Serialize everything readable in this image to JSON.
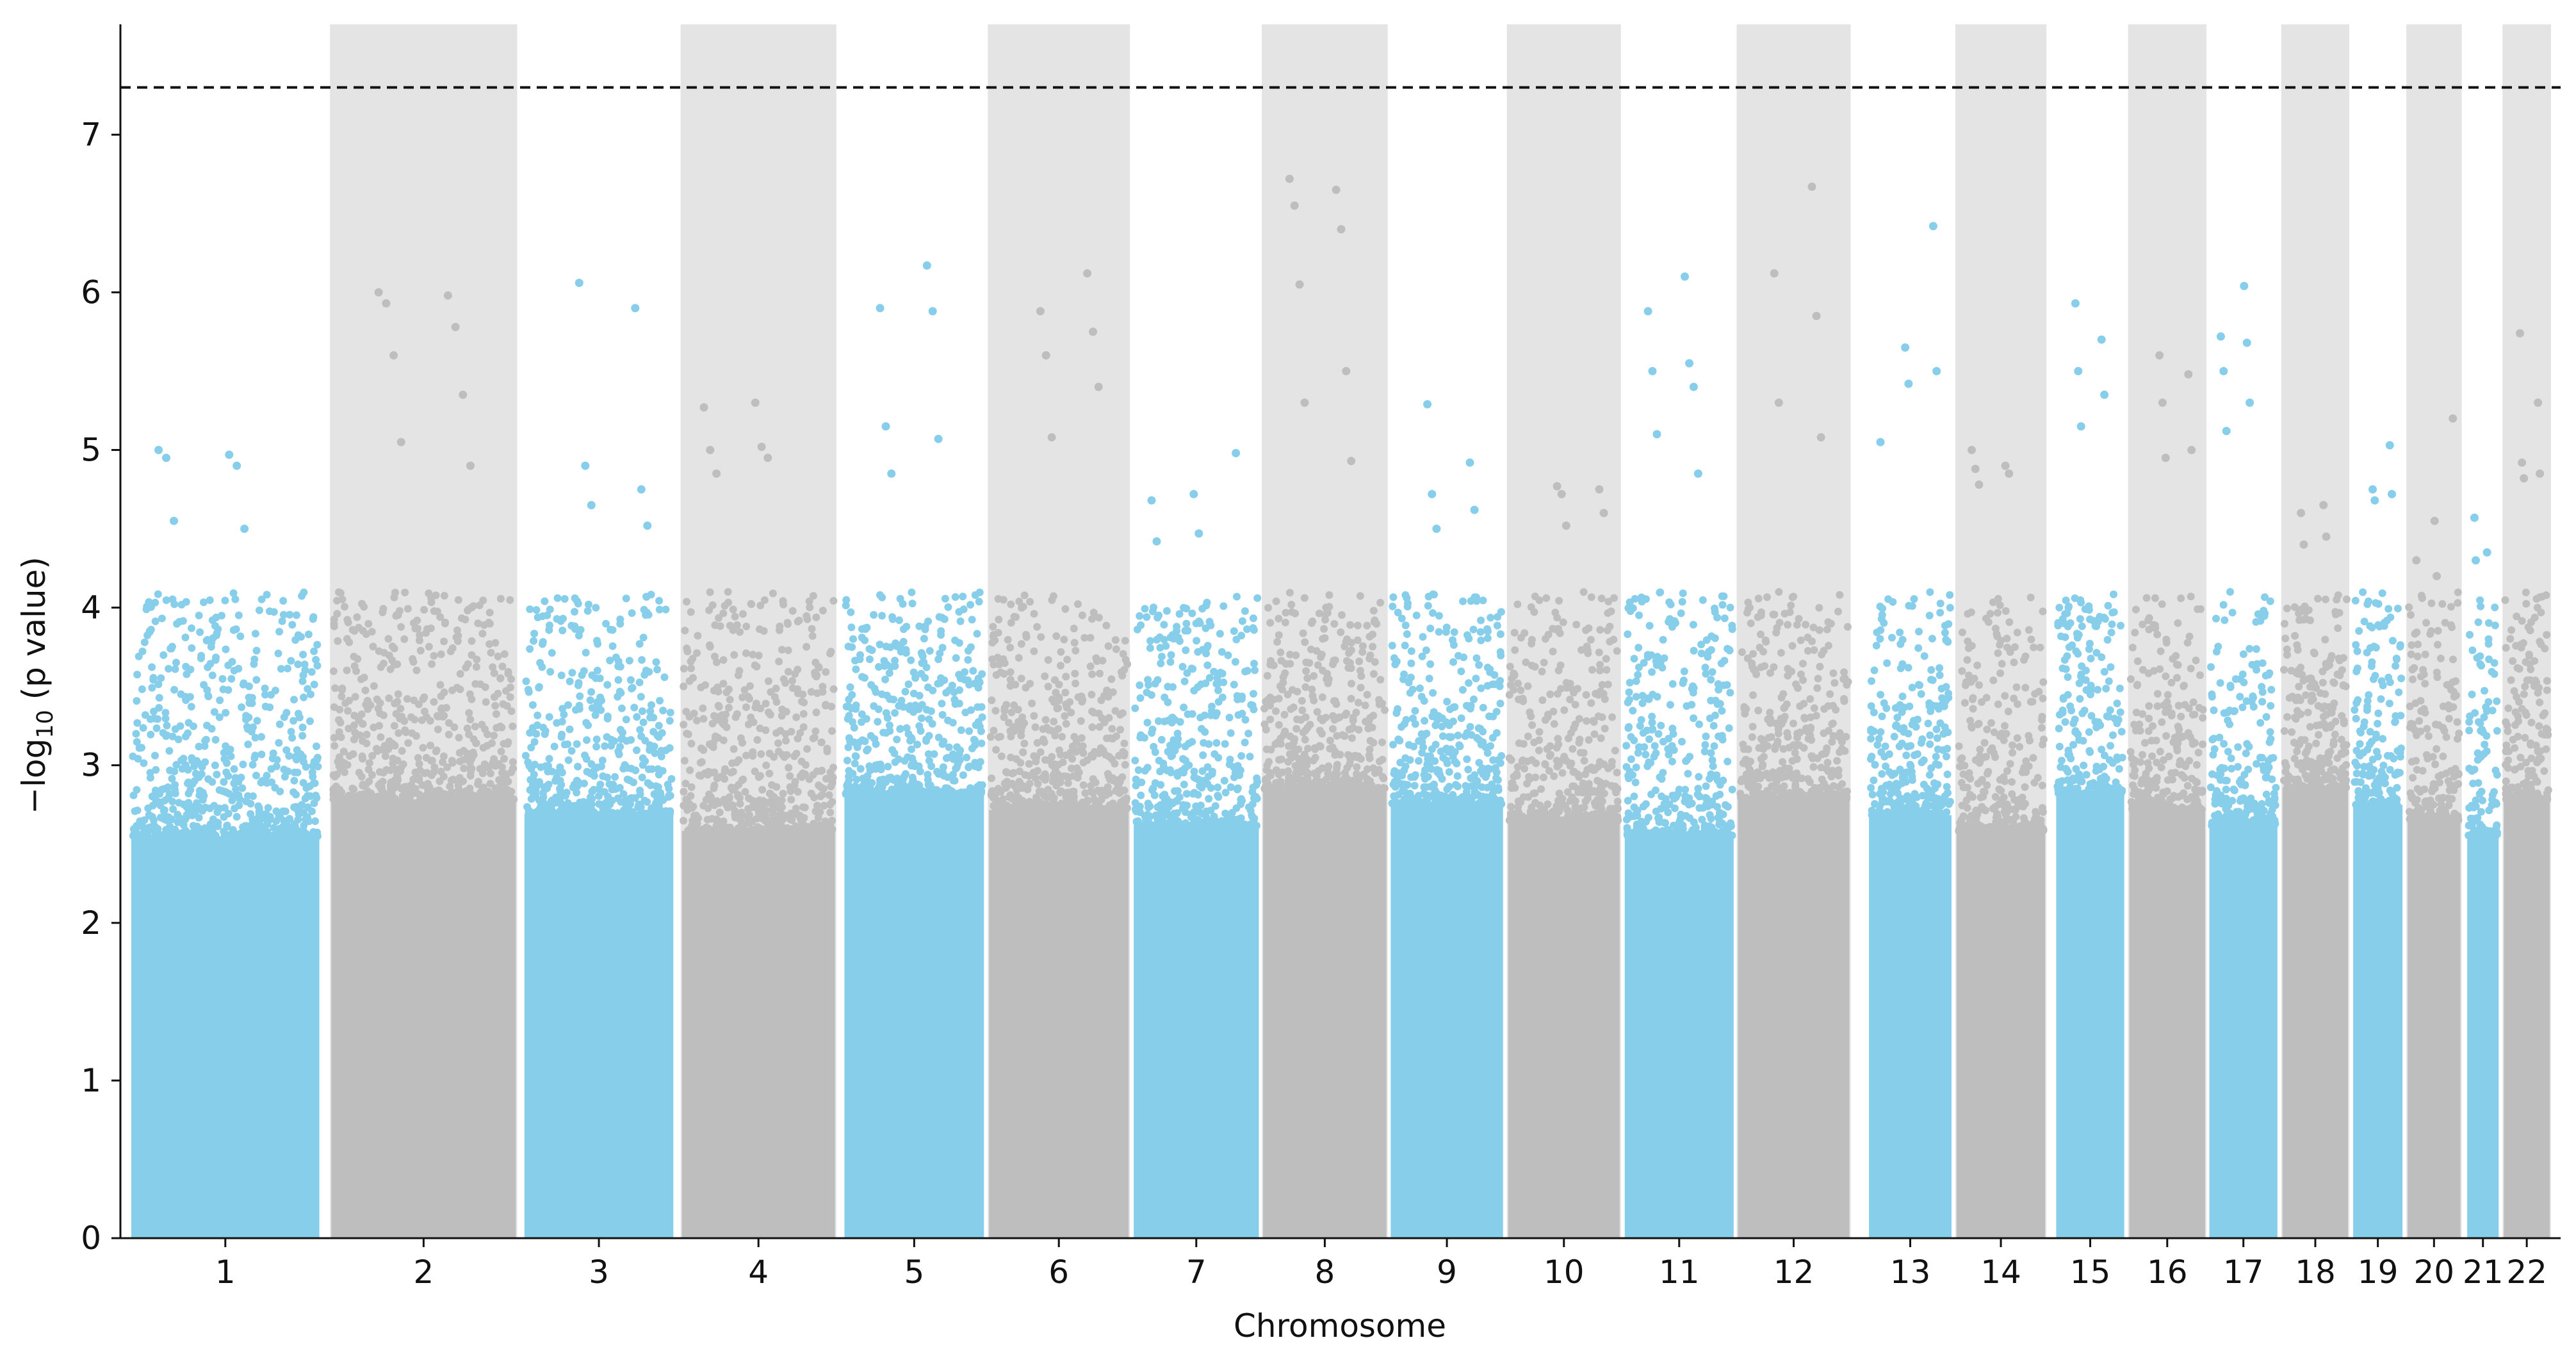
{
  "chart_data": {
    "type": "scatter",
    "subtype": "manhattan",
    "title": "",
    "xlabel": "Chromosome",
    "ylabel": {
      "prefix": "−log",
      "subscript": "10",
      "suffix": " (p value)"
    },
    "ylim": [
      0,
      7.7
    ],
    "yticks": [
      0,
      1,
      2,
      3,
      4,
      5,
      6,
      7
    ],
    "threshold": {
      "value": 7.3,
      "style": "dashed",
      "color": "#111111"
    },
    "grid": false,
    "legend": "none",
    "colors": {
      "odd_chrom": "#87CEEB",
      "even_chrom": "#BEBEBE",
      "even_band": "#E4E4E4"
    },
    "chromosomes": [
      {
        "label": "1",
        "start": 0,
        "end": 224,
        "max": 5.0,
        "top_hits": [
          5.0,
          4.97,
          4.95,
          4.9,
          4.55,
          4.5
        ]
      },
      {
        "label": "2",
        "start": 235,
        "end": 455,
        "max": 6.0,
        "top_hits": [
          6.0,
          5.98,
          5.93,
          5.78,
          5.6,
          5.35,
          5.05,
          4.9
        ]
      },
      {
        "label": "3",
        "start": 462,
        "end": 640,
        "max": 6.06,
        "top_hits": [
          6.06,
          5.9,
          4.9,
          4.75,
          4.65,
          4.52
        ]
      },
      {
        "label": "4",
        "start": 647,
        "end": 830,
        "max": 5.3,
        "top_hits": [
          5.3,
          5.27,
          5.02,
          5.0,
          4.95,
          4.85
        ]
      },
      {
        "label": "5",
        "start": 838,
        "end": 1005,
        "max": 6.17,
        "top_hits": [
          6.17,
          5.9,
          5.88,
          5.15,
          5.07,
          4.85
        ]
      },
      {
        "label": "6",
        "start": 1008,
        "end": 1175,
        "max": 6.12,
        "top_hits": [
          6.12,
          5.88,
          5.75,
          5.6,
          5.4,
          5.08
        ]
      },
      {
        "label": "7",
        "start": 1178,
        "end": 1328,
        "max": 4.98,
        "top_hits": [
          4.98,
          4.72,
          4.68,
          4.47,
          4.42
        ]
      },
      {
        "label": "8",
        "start": 1330,
        "end": 1478,
        "max": 6.72,
        "top_hits": [
          6.72,
          6.65,
          6.55,
          6.4,
          6.05,
          5.5,
          5.3,
          4.93
        ]
      },
      {
        "label": "9",
        "start": 1480,
        "end": 1615,
        "max": 5.29,
        "top_hits": [
          5.29,
          4.92,
          4.72,
          4.62,
          4.5
        ]
      },
      {
        "label": "10",
        "start": 1618,
        "end": 1752,
        "max": 4.77,
        "top_hits": [
          4.77,
          4.75,
          4.72,
          4.6,
          4.52
        ]
      },
      {
        "label": "11",
        "start": 1755,
        "end": 1886,
        "max": 6.1,
        "top_hits": [
          6.1,
          5.88,
          5.55,
          5.5,
          5.4,
          5.1,
          4.85
        ]
      },
      {
        "label": "12",
        "start": 1888,
        "end": 2022,
        "max": 6.67,
        "top_hits": [
          6.67,
          6.12,
          5.85,
          5.3,
          5.08
        ]
      },
      {
        "label": "13",
        "start": 2042,
        "end": 2142,
        "max": 6.42,
        "top_hits": [
          6.42,
          5.65,
          5.5,
          5.42,
          5.05
        ]
      },
      {
        "label": "14",
        "start": 2145,
        "end": 2252,
        "max": 5.0,
        "top_hits": [
          5.0,
          4.9,
          4.88,
          4.85,
          4.78
        ]
      },
      {
        "label": "15",
        "start": 2262,
        "end": 2345,
        "max": 5.93,
        "top_hits": [
          5.93,
          5.7,
          5.5,
          5.35,
          5.15
        ]
      },
      {
        "label": "16",
        "start": 2348,
        "end": 2440,
        "max": 5.6,
        "top_hits": [
          5.6,
          5.48,
          5.3,
          5.0,
          4.95
        ]
      },
      {
        "label": "17",
        "start": 2442,
        "end": 2525,
        "max": 6.04,
        "top_hits": [
          6.04,
          5.72,
          5.68,
          5.5,
          5.3,
          5.12
        ]
      },
      {
        "label": "18",
        "start": 2528,
        "end": 2608,
        "max": 4.65,
        "top_hits": [
          4.65,
          4.6,
          4.45,
          4.4
        ]
      },
      {
        "label": "19",
        "start": 2611,
        "end": 2672,
        "max": 5.03,
        "top_hits": [
          5.03,
          4.75,
          4.72,
          4.68
        ]
      },
      {
        "label": "20",
        "start": 2675,
        "end": 2740,
        "max": 5.2,
        "top_hits": [
          5.2,
          4.55,
          4.3,
          4.2
        ]
      },
      {
        "label": "21",
        "start": 2745,
        "end": 2785,
        "max": 4.57,
        "top_hits": [
          4.57,
          4.35,
          4.3
        ]
      },
      {
        "label": "22",
        "start": 2788,
        "end": 2845,
        "max": 5.74,
        "top_hits": [
          5.74,
          5.3,
          4.92,
          4.85,
          4.82
        ]
      }
    ]
  }
}
